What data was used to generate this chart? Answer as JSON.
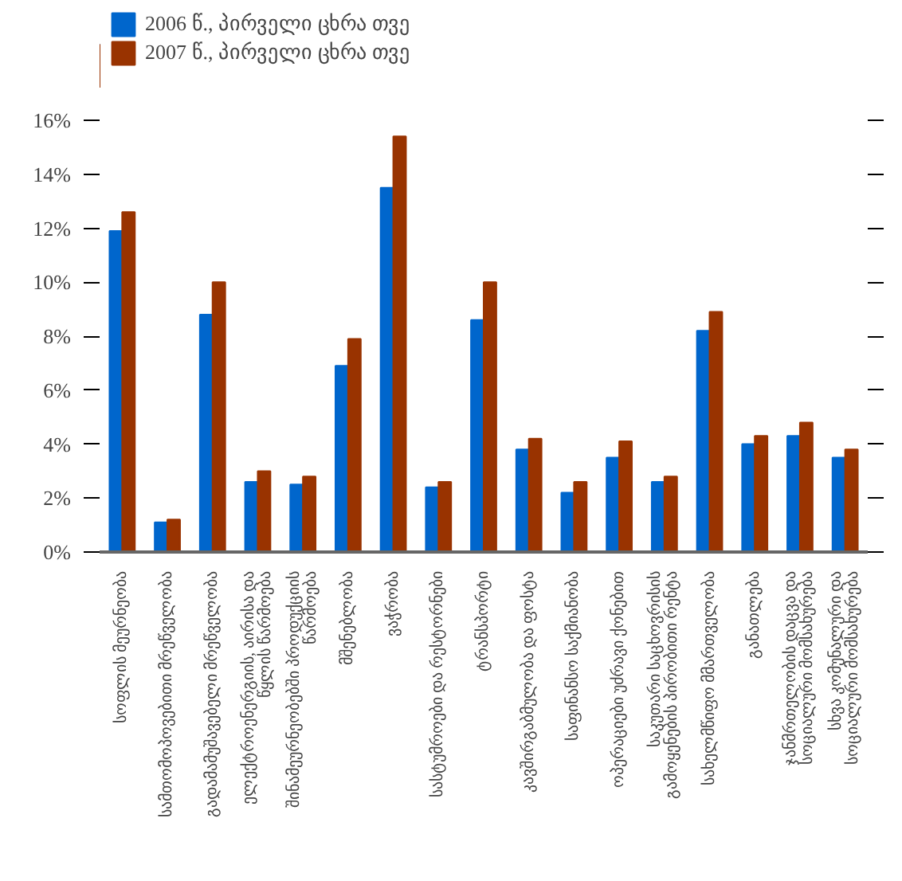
{
  "chart_data": {
    "type": "bar",
    "categories": [
      "სოფლის მეურნეობა",
      "სამთომოპოვებითი მრეწველობა",
      "გადამამუშავებელი მრეწველობა",
      "ელექტროენერგიის, აირისა და წყლის წარმოება",
      "შინამეურნეობებში პროდუქციის წარმოება",
      "მშენებლობა",
      "ვაჭრობა",
      "სასტუმროები და რესტორნები",
      "ტრანსპორტი",
      "კავშირგაბმულობა და ფოსტა",
      "საფინანსო საქმიანობა",
      "ოპერაციები უძრავი ქონებით",
      "საკუთარი საცხოვრისის გამოყენების პირობითი რენტა",
      "სახელმწიფო მმართველობა",
      "განათლება",
      "ჯანმრთელობის დაცვა და სოციალური მომსახურება",
      "სხვა კომუნალური და სოციალური მომსახურება"
    ],
    "series": [
      {
        "name": "2006 წ., პირველი ცხრა თვე",
        "color": "#0066cc",
        "values": [
          11.9,
          1.1,
          8.8,
          2.6,
          2.5,
          6.9,
          13.5,
          2.4,
          8.6,
          3.8,
          2.2,
          3.5,
          2.6,
          8.2,
          4.0,
          4.3,
          3.5
        ]
      },
      {
        "name": "2007 წ., პირველი ცხრა თვე",
        "color": "#993300",
        "values": [
          12.6,
          1.2,
          10.0,
          3.0,
          2.8,
          7.9,
          15.4,
          2.6,
          10.0,
          4.2,
          2.6,
          4.1,
          2.8,
          8.9,
          4.3,
          4.8,
          3.8
        ]
      }
    ],
    "ylim": [
      0,
      16
    ],
    "yticks": [
      {
        "value": 0,
        "label": "0%"
      },
      {
        "value": 2,
        "label": "2%"
      },
      {
        "value": 4,
        "label": "4%"
      },
      {
        "value": 6,
        "label": "6%"
      },
      {
        "value": 8,
        "label": "8%"
      },
      {
        "value": 10,
        "label": "10%"
      },
      {
        "value": 12,
        "label": "12%"
      },
      {
        "value": 14,
        "label": "14%"
      },
      {
        "value": 16,
        "label": "16%"
      }
    ],
    "grid": false,
    "legend": "top left"
  }
}
